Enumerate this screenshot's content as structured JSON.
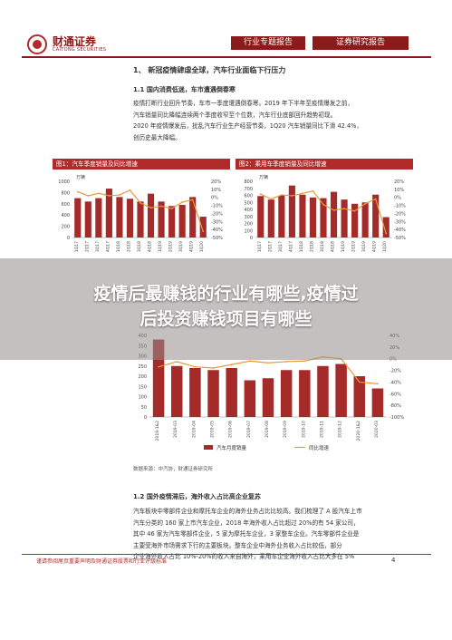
{
  "header": {
    "brand_cn": "财通证券",
    "brand_en": "CAITONG SECURITIES",
    "tab1": "行业专题报告",
    "tab2": "证券研究报告"
  },
  "section1": {
    "title": "1、 新冠疫情肆虐全球，汽车行业面临下行压力",
    "sub": "1.1   国内消费低迷，车市遭遇倒春寒",
    "lines": [
      "疫情打断行业回升节奏，车市一季度遭遇倒春寒。2019 年下半年至疫情爆发之前，",
      "汽车销量同比降幅连续两个季度收窄至个位数，汽车行业底部回升趋势初现。",
      "2020 年疫情爆发后，扰乱汽车行业生产经营节奏，1Q20 汽车销量同比下滑 42.4%，",
      "创历史最大降幅。"
    ]
  },
  "fig1": {
    "title": "图1：汽车季度销量及同比增速"
  },
  "fig2": {
    "title": "图2：乘用车季度销量及同比增速"
  },
  "overlay": {
    "line1": "疫情后最赚钱的行业有哪些,疫情过",
    "line2": "后投资赚钱项目有哪些"
  },
  "fig3": {
    "legend1": "汽车月度销量",
    "legend2": "同比增速",
    "source": "数据来源：中汽协，财通证券研究所"
  },
  "section12": {
    "sub": "1.2   国外疫情滞后，海外收入占比高企业复苏",
    "lines": [
      "汽车板块中零部件企业和摩托车企业的海外业务占比比较高。我们梳理了 A 股汽车上市",
      "汽车分类的 160 家上市汽车企业，2018 年海外收入占比超过 20%的有 54 家公司，",
      "其中 46 家为汽车零部件企业，5 家为摩托车企业，3 家整车企业。汽车零部件企业是",
      "主要受海外市场需求下行的主要板块。整车企业中海外业务收入占比较低，部分",
      "企业海外收入占比 10%-20%的收入来自海外，乘用车企业海外收入占比大多在 5%"
    ]
  },
  "footer": {
    "disclaimer": "谨请参阅尾页重要声明及财通证券股票和行业评级标准",
    "page": "4"
  },
  "chart_data": [
    {
      "type": "bar",
      "title": "图1：汽车季度销量及同比增速",
      "ylabel": "万辆",
      "ylim": [
        0,
        1000
      ],
      "y2lim": [
        -50,
        20
      ],
      "categories": [
        "1Q17",
        "2Q17",
        "3Q17",
        "4Q17",
        "1Q18",
        "2Q18",
        "3Q18",
        "4Q18",
        "1Q19",
        "2Q19",
        "3Q19",
        "4Q19",
        "1Q20"
      ],
      "series": [
        {
          "name": "",
          "values": [
            700,
            640,
            700,
            870,
            720,
            690,
            640,
            780,
            640,
            560,
            580,
            720,
            370
          ]
        },
        {
          "name": "",
          "values": [
            7,
            2,
            5,
            2,
            3,
            9,
            -7,
            -13,
            -11,
            -14,
            -6,
            -3,
            -42.4
          ],
          "axis": "y2"
        }
      ]
    },
    {
      "type": "bar",
      "title": "图2：乘用车季度销量及同比增速",
      "ylabel": "万辆",
      "ylim": [
        0,
        800
      ],
      "y2lim": [
        -50,
        20
      ],
      "categories": [
        "1Q17",
        "2Q17",
        "3Q17",
        "4Q17",
        "1Q18",
        "2Q18",
        "3Q18",
        "4Q18",
        "1Q19",
        "2Q19",
        "3Q19",
        "4Q19",
        "1Q20"
      ],
      "series": [
        {
          "name": "",
          "values": [
            590,
            540,
            600,
            740,
            610,
            570,
            560,
            650,
            540,
            480,
            500,
            610,
            290
          ]
        },
        {
          "name": "",
          "values": [
            4,
            -2,
            3,
            2,
            5,
            8,
            -9,
            -16,
            -14,
            -17,
            -8,
            -2,
            -45
          ],
          "axis": "y2"
        }
      ]
    },
    {
      "type": "bar",
      "title": "",
      "ylim": [
        0,
        400
      ],
      "y2lim": [
        -100,
        40
      ],
      "categories": [
        "2019-1&2",
        "2019-03",
        "2019-04",
        "2019-05",
        "2019-06",
        "2019-07",
        "2019-08",
        "2019-09",
        "2019-10",
        "2019-11",
        "2019-12",
        "2020-1&2",
        "2020-03"
      ],
      "series": [
        {
          "name": "汽车月度销量",
          "values": [
            380,
            250,
            240,
            230,
            240,
            180,
            190,
            230,
            230,
            250,
            260,
            200,
            140
          ]
        },
        {
          "name": "同比增速",
          "values": [
            -14,
            -5,
            -14,
            -16,
            -10,
            -4,
            -7,
            -5,
            -4,
            3,
            0,
            -40,
            -43
          ],
          "axis": "y2"
        }
      ]
    }
  ]
}
